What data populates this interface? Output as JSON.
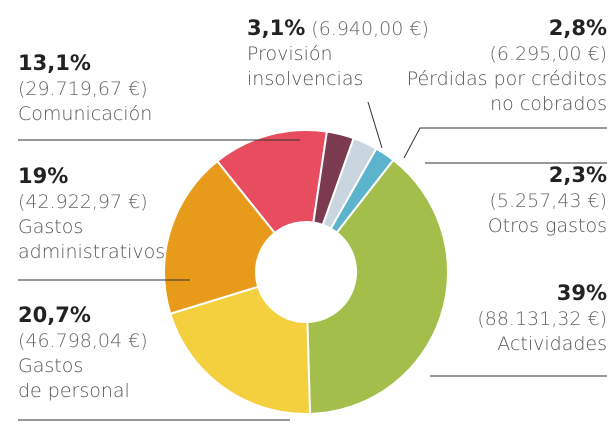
{
  "chart_data": {
    "type": "donut",
    "categories": [
      "Comunicación",
      "Provisión\ninsolvencias",
      "Pérdidas por créditos\nno cobrados",
      "Otros gastos",
      "Actividades",
      "Gastos\nde personal",
      "Gastos\nadministrativos"
    ],
    "values": [
      13.1,
      3.1,
      2.8,
      2.3,
      39,
      20.7,
      19
    ],
    "value_labels": [
      "13,1%",
      "3,1%",
      "2,8%",
      "2,3%",
      "39%",
      "20,7%",
      "19%"
    ],
    "amounts": [
      "(29.719,67 €)",
      "(6.940,00 €)",
      "(6.295,00 €)",
      "(5.257,43 €)",
      "(88.131,32 €)",
      "(46.798,04 €)",
      "(42.922,97 €)"
    ],
    "colors": [
      "#e84c5f",
      "#7b3a4f",
      "#c9d6df",
      "#5bb4cc",
      "#a3be4a",
      "#f4d03f",
      "#e89b1a"
    ]
  }
}
